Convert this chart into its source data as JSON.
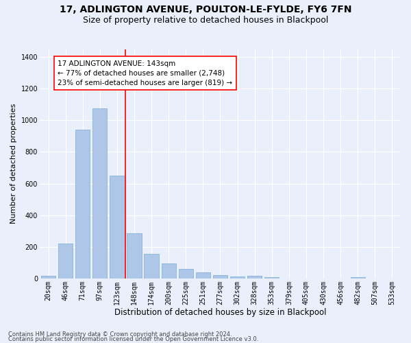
{
  "title1": "17, ADLINGTON AVENUE, POULTON-LE-FYLDE, FY6 7FN",
  "title2": "Size of property relative to detached houses in Blackpool",
  "xlabel": "Distribution of detached houses by size in Blackpool",
  "ylabel": "Number of detached properties",
  "footnote1": "Contains HM Land Registry data © Crown copyright and database right 2024.",
  "footnote2": "Contains public sector information licensed under the Open Government Licence v3.0.",
  "bar_labels": [
    "20sqm",
    "46sqm",
    "71sqm",
    "97sqm",
    "123sqm",
    "148sqm",
    "174sqm",
    "200sqm",
    "225sqm",
    "251sqm",
    "277sqm",
    "302sqm",
    "328sqm",
    "353sqm",
    "379sqm",
    "405sqm",
    "430sqm",
    "456sqm",
    "482sqm",
    "507sqm",
    "533sqm"
  ],
  "bar_values": [
    15,
    220,
    940,
    1075,
    650,
    285,
    155,
    95,
    60,
    38,
    22,
    12,
    15,
    8,
    0,
    0,
    0,
    0,
    10,
    0,
    0
  ],
  "bar_color": "#aec6e8",
  "bar_edge_color": "#7aadd4",
  "vline_x": 4.5,
  "vline_color": "red",
  "annotation_text": "17 ADLINGTON AVENUE: 143sqm\n← 77% of detached houses are smaller (2,748)\n23% of semi-detached houses are larger (819) →",
  "annotation_box_color": "white",
  "annotation_box_edge": "red",
  "ylim": [
    0,
    1450
  ],
  "yticks": [
    0,
    200,
    400,
    600,
    800,
    1000,
    1200,
    1400
  ],
  "bg_color": "#eaf0fb",
  "plot_bg_color": "#eaf0fb",
  "grid_color": "white",
  "title1_fontsize": 10,
  "title2_fontsize": 9,
  "xlabel_fontsize": 8.5,
  "ylabel_fontsize": 8,
  "tick_fontsize": 7,
  "annot_fontsize": 7.5,
  "footnote_fontsize": 6
}
